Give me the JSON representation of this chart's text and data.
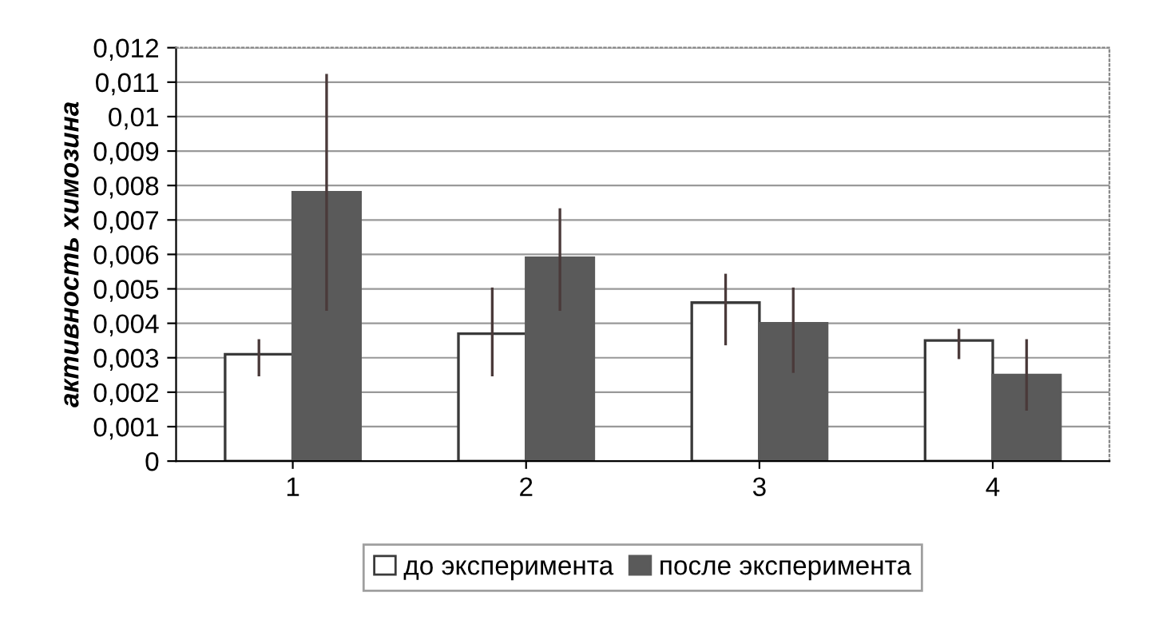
{
  "chart_data": {
    "type": "bar",
    "ylabel": "активность химозина",
    "categories": [
      "1",
      "2",
      "3",
      "4"
    ],
    "series": [
      {
        "name": "до эксперимента",
        "color": "#ffffff",
        "values": [
          0.0031,
          0.0037,
          0.0046,
          0.0035
        ],
        "errors": [
          [
            0.0025,
            0.0035
          ],
          [
            0.0025,
            0.005
          ],
          [
            0.0034,
            0.0054
          ],
          [
            0.003,
            0.0038
          ]
        ]
      },
      {
        "name": "после эксперимента",
        "color": "#5a5a5a",
        "values": [
          0.0078,
          0.0059,
          0.004,
          0.0025
        ],
        "errors": [
          [
            0.0044,
            0.0112
          ],
          [
            0.0044,
            0.0073
          ],
          [
            0.0026,
            0.005
          ],
          [
            0.0015,
            0.0035
          ]
        ]
      }
    ],
    "ylim": [
      0,
      0.012
    ],
    "yticks": [
      0,
      {
        "value": 0.001,
        "label": "0,001"
      },
      {
        "value": 0.002,
        "label": "0,002"
      },
      {
        "value": 0.003,
        "label": "0,003"
      },
      {
        "value": 0.004,
        "label": "0,004"
      },
      {
        "value": 0.005,
        "label": "0,005"
      },
      {
        "value": 0.006,
        "label": "0,006"
      },
      {
        "value": 0.007,
        "label": "0,007"
      },
      {
        "value": 0.008,
        "label": "0,008"
      },
      {
        "value": 0.009,
        "label": "0,009"
      },
      {
        "value": 0.01,
        "label": "0,01"
      },
      {
        "value": 0.011,
        "label": "0,011"
      },
      {
        "value": 0.012,
        "label": "0,012"
      }
    ],
    "grid": "y",
    "legend": "bottom"
  }
}
